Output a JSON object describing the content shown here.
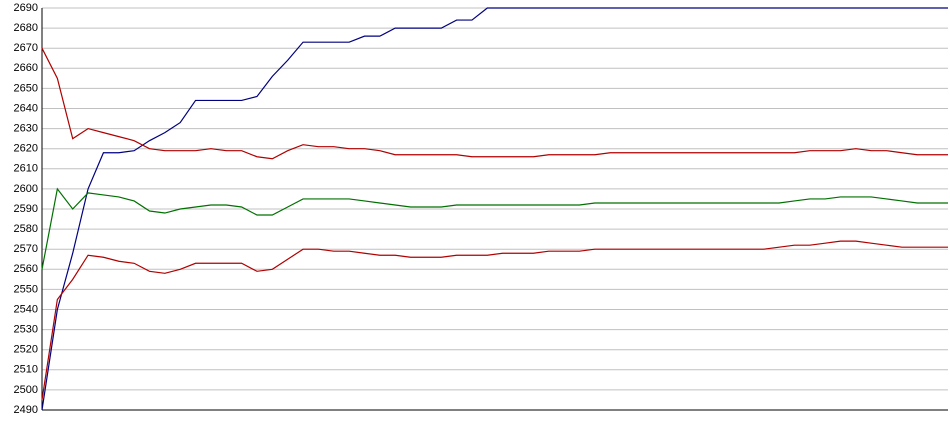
{
  "chart_data": {
    "type": "line",
    "ylim": [
      2490,
      2690
    ],
    "yticks": [
      2490,
      2500,
      2510,
      2520,
      2530,
      2540,
      2550,
      2560,
      2570,
      2580,
      2590,
      2600,
      2610,
      2620,
      2630,
      2640,
      2650,
      2660,
      2670,
      2680,
      2690
    ],
    "grid": true,
    "series": [
      {
        "color": "#000080",
        "values": [
          2490,
          2540,
          2568,
          2600,
          2618,
          2618,
          2619,
          2624,
          2628,
          2633,
          2644,
          2644,
          2644,
          2644,
          2646,
          2656,
          2664,
          2673,
          2673,
          2673,
          2673,
          2676,
          2676,
          2680,
          2680,
          2680,
          2680,
          2684,
          2684,
          2690,
          2690,
          2690,
          2690,
          2690,
          2690,
          2690,
          2690,
          2690,
          2690,
          2690,
          2690,
          2690,
          2690,
          2690,
          2690,
          2690,
          2690,
          2690,
          2690,
          2690,
          2690,
          2690,
          2690,
          2690,
          2690,
          2690,
          2690,
          2690,
          2690,
          2690
        ]
      },
      {
        "color": "#b00000",
        "values": [
          2670,
          2655,
          2625,
          2630,
          2628,
          2626,
          2624,
          2620,
          2619,
          2619,
          2619,
          2620,
          2619,
          2619,
          2616,
          2615,
          2619,
          2622,
          2621,
          2621,
          2620,
          2620,
          2619,
          2617,
          2617,
          2617,
          2617,
          2617,
          2616,
          2616,
          2616,
          2616,
          2616,
          2617,
          2617,
          2617,
          2617,
          2618,
          2618,
          2618,
          2618,
          2618,
          2618,
          2618,
          2618,
          2618,
          2618,
          2618,
          2618,
          2618,
          2619,
          2619,
          2619,
          2620,
          2619,
          2619,
          2618,
          2617,
          2617,
          2617
        ]
      },
      {
        "color": "#007000",
        "values": [
          2560,
          2600,
          2590,
          2598,
          2597,
          2596,
          2594,
          2589,
          2588,
          2590,
          2591,
          2592,
          2592,
          2591,
          2587,
          2587,
          2591,
          2595,
          2595,
          2595,
          2595,
          2594,
          2593,
          2592,
          2591,
          2591,
          2591,
          2592,
          2592,
          2592,
          2592,
          2592,
          2592,
          2592,
          2592,
          2592,
          2593,
          2593,
          2593,
          2593,
          2593,
          2593,
          2593,
          2593,
          2593,
          2593,
          2593,
          2593,
          2593,
          2594,
          2595,
          2595,
          2596,
          2596,
          2596,
          2595,
          2594,
          2593,
          2593,
          2593
        ]
      },
      {
        "color": "#b00000",
        "values": [
          2495,
          2545,
          2555,
          2567,
          2566,
          2564,
          2563,
          2559,
          2558,
          2560,
          2563,
          2563,
          2563,
          2563,
          2559,
          2560,
          2565,
          2570,
          2570,
          2569,
          2569,
          2568,
          2567,
          2567,
          2566,
          2566,
          2566,
          2567,
          2567,
          2567,
          2568,
          2568,
          2568,
          2569,
          2569,
          2569,
          2570,
          2570,
          2570,
          2570,
          2570,
          2570,
          2570,
          2570,
          2570,
          2570,
          2570,
          2570,
          2571,
          2572,
          2572,
          2573,
          2574,
          2574,
          2573,
          2572,
          2571,
          2571,
          2571,
          2571
        ]
      }
    ]
  }
}
